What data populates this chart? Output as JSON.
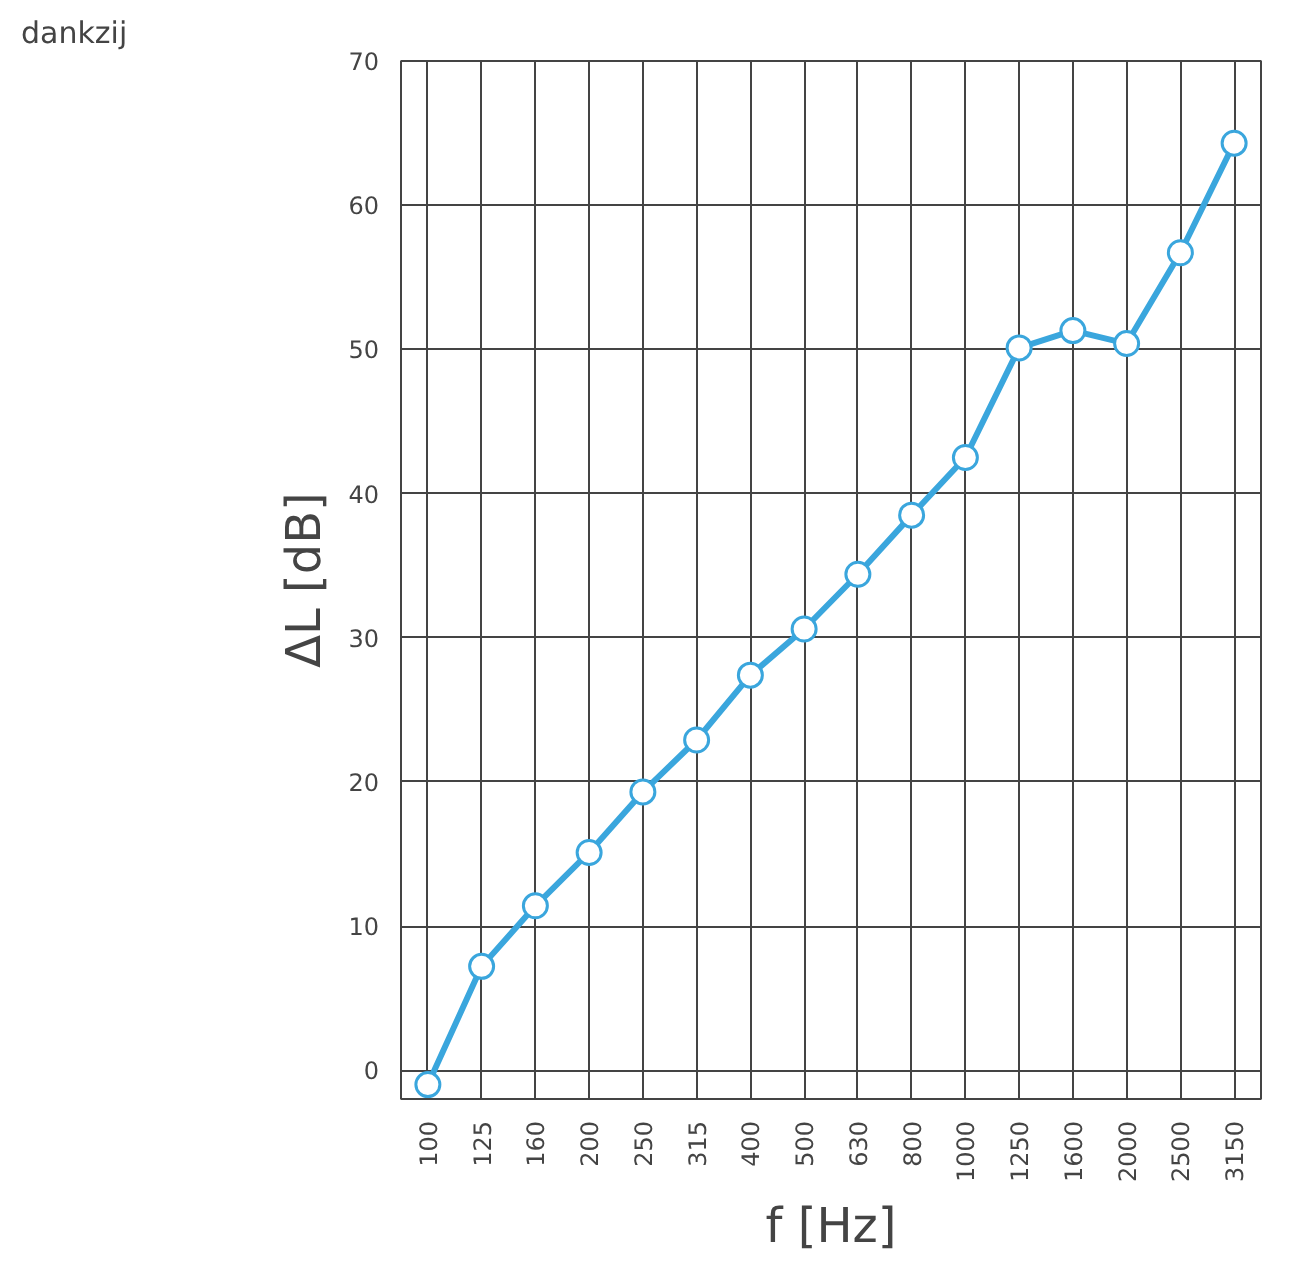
{
  "chart_data": {
    "type": "line",
    "title": "dankzij",
    "xlabel": "f [Hz]",
    "ylabel": "ΔL [dB]",
    "categories": [
      "100",
      "125",
      "160",
      "200",
      "250",
      "315",
      "400",
      "500",
      "630",
      "800",
      "1000",
      "1250",
      "1600",
      "2000",
      "2500",
      "3150"
    ],
    "series": [
      {
        "color": "#3aa6dd",
        "values": [
          -1,
          7.2,
          11.4,
          15.1,
          19.3,
          22.9,
          27.4,
          30.6,
          34.4,
          38.5,
          42.5,
          50.1,
          51.3,
          50.4,
          56.7,
          64.3
        ]
      }
    ],
    "ylim": [
      -2,
      70
    ],
    "yticks": [
      0,
      10,
      20,
      30,
      40,
      50,
      60,
      70
    ],
    "grid": true,
    "marker": "circle",
    "line_style": "solid"
  }
}
